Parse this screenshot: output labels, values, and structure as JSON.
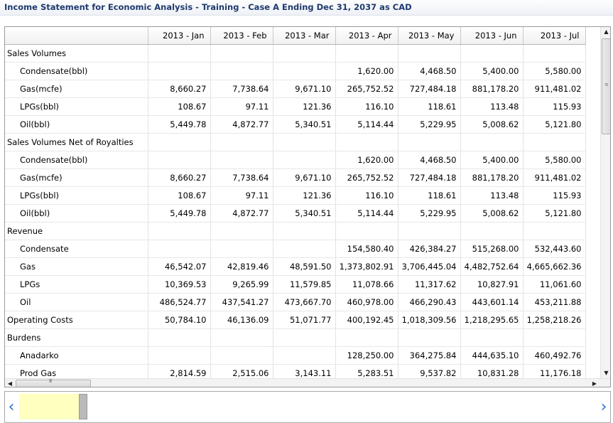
{
  "window": {
    "title": "Income Statement for Economic Analysis - Training - Case A Ending Dec 31, 2037 as CAD"
  },
  "grid": {
    "columns": [
      "",
      "2013 - Jan",
      "2013 - Feb",
      "2013 - Mar",
      "2013 - Apr",
      "2013 - May",
      "2013 - Jun",
      "2013 - Jul"
    ],
    "rows": [
      {
        "label": "Sales Volumes",
        "indent": false,
        "values": [
          "",
          "",
          "",
          "",
          "",
          "",
          ""
        ]
      },
      {
        "label": "Condensate(bbl)",
        "indent": true,
        "values": [
          "",
          "",
          "",
          "1,620.00",
          "4,468.50",
          "5,400.00",
          "5,580.00"
        ]
      },
      {
        "label": "Gas(mcfe)",
        "indent": true,
        "values": [
          "8,660.27",
          "7,738.64",
          "9,671.10",
          "265,752.52",
          "727,484.18",
          "881,178.20",
          "911,481.02"
        ]
      },
      {
        "label": "LPGs(bbl)",
        "indent": true,
        "values": [
          "108.67",
          "97.11",
          "121.36",
          "116.10",
          "118.61",
          "113.48",
          "115.93"
        ]
      },
      {
        "label": "Oil(bbl)",
        "indent": true,
        "values": [
          "5,449.78",
          "4,872.77",
          "5,340.51",
          "5,114.44",
          "5,229.95",
          "5,008.62",
          "5,121.80"
        ]
      },
      {
        "label": "Sales Volumes Net of Royalties",
        "indent": false,
        "values": [
          "",
          "",
          "",
          "",
          "",
          "",
          ""
        ]
      },
      {
        "label": "Condensate(bbl)",
        "indent": true,
        "values": [
          "",
          "",
          "",
          "1,620.00",
          "4,468.50",
          "5,400.00",
          "5,580.00"
        ]
      },
      {
        "label": "Gas(mcfe)",
        "indent": true,
        "values": [
          "8,660.27",
          "7,738.64",
          "9,671.10",
          "265,752.52",
          "727,484.18",
          "881,178.20",
          "911,481.02"
        ]
      },
      {
        "label": "LPGs(bbl)",
        "indent": true,
        "values": [
          "108.67",
          "97.11",
          "121.36",
          "116.10",
          "118.61",
          "113.48",
          "115.93"
        ]
      },
      {
        "label": "Oil(bbl)",
        "indent": true,
        "values": [
          "5,449.78",
          "4,872.77",
          "5,340.51",
          "5,114.44",
          "5,229.95",
          "5,008.62",
          "5,121.80"
        ]
      },
      {
        "label": "Revenue",
        "indent": false,
        "values": [
          "",
          "",
          "",
          "",
          "",
          "",
          ""
        ]
      },
      {
        "label": "Condensate",
        "indent": true,
        "values": [
          "",
          "",
          "",
          "154,580.40",
          "426,384.27",
          "515,268.00",
          "532,443.60"
        ]
      },
      {
        "label": "Gas",
        "indent": true,
        "values": [
          "46,542.07",
          "42,819.46",
          "48,591.50",
          "1,373,802.91",
          "3,706,445.04",
          "4,482,752.64",
          "4,665,662.36"
        ]
      },
      {
        "label": "LPGs",
        "indent": true,
        "values": [
          "10,369.53",
          "9,265.99",
          "11,579.85",
          "11,078.66",
          "11,317.62",
          "10,827.91",
          "11,061.60"
        ]
      },
      {
        "label": "Oil",
        "indent": true,
        "values": [
          "486,524.77",
          "437,541.27",
          "473,667.70",
          "460,978.00",
          "466,290.43",
          "443,601.14",
          "453,211.88"
        ]
      },
      {
        "label": "Operating Costs",
        "indent": false,
        "values": [
          "50,784.10",
          "46,136.09",
          "51,071.77",
          "400,192.45",
          "1,018,309.56",
          "1,218,295.65",
          "1,258,218.26"
        ]
      },
      {
        "label": "Burdens",
        "indent": false,
        "values": [
          "",
          "",
          "",
          "",
          "",
          "",
          ""
        ]
      },
      {
        "label": "Anadarko",
        "indent": true,
        "values": [
          "",
          "",
          "",
          "128,250.00",
          "364,275.84",
          "444,635.10",
          "460,492.76"
        ]
      },
      {
        "label": "Prod Gas",
        "indent": true,
        "values": [
          "2,814.59",
          "2,515.06",
          "3,143.11",
          "5,283.51",
          "9,537.82",
          "10,831.28",
          "11,176.18"
        ]
      }
    ]
  },
  "icons": {
    "scroll_up": "▲",
    "scroll_down": "▼",
    "scroll_left": "◀",
    "scroll_right": "▶",
    "timeline_left": "‹",
    "timeline_right": "›",
    "grip_vertical": "≡",
    "grip_horizontal": "III"
  },
  "colors": {
    "title_text": "#1e3a6e",
    "timeline_window": "#ffffc0",
    "timeline_arrow": "#2d6fc9"
  }
}
